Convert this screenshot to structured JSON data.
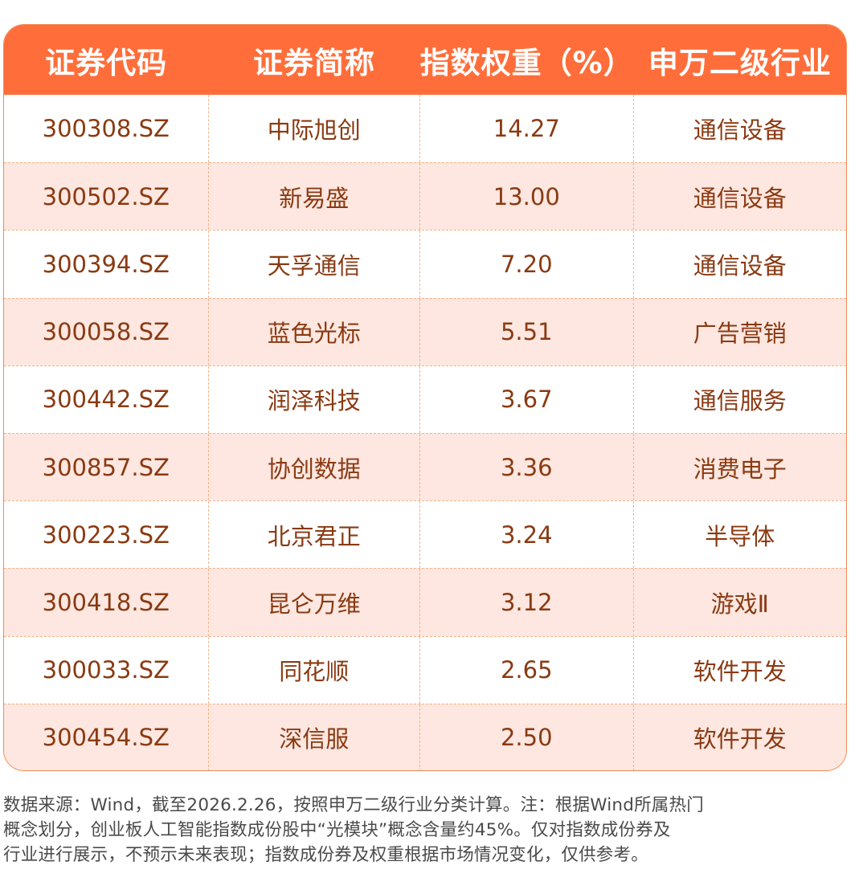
{
  "table": {
    "headers": [
      "证券代码",
      "证券简称",
      "指数权重（%）",
      "申万二级行业"
    ],
    "rows": [
      {
        "code": "300308.SZ",
        "name": "中际旭创",
        "weight": "14.27",
        "industry": "通信设备"
      },
      {
        "code": "300502.SZ",
        "name": "新易盛",
        "weight": "13.00",
        "industry": "通信设备"
      },
      {
        "code": "300394.SZ",
        "name": "天孚通信",
        "weight": "7.20",
        "industry": "通信设备"
      },
      {
        "code": "300058.SZ",
        "name": "蓝色光标",
        "weight": "5.51",
        "industry": "广告营销"
      },
      {
        "code": "300442.SZ",
        "name": "润泽科技",
        "weight": "3.67",
        "industry": "通信服务"
      },
      {
        "code": "300857.SZ",
        "name": "协创数据",
        "weight": "3.36",
        "industry": "消费电子"
      },
      {
        "code": "300223.SZ",
        "name": "北京君正",
        "weight": "3.24",
        "industry": "半导体"
      },
      {
        "code": "300418.SZ",
        "name": "昆仑万维",
        "weight": "3.12",
        "industry": "游戏Ⅱ"
      },
      {
        "code": "300033.SZ",
        "name": "同花顺",
        "weight": "2.65",
        "industry": "软件开发"
      },
      {
        "code": "300454.SZ",
        "name": "深信服",
        "weight": "2.50",
        "industry": "软件开发"
      }
    ]
  },
  "footnote": {
    "line1": "数据来源：Wind，截至2026.2.26，按照申万二级行业分类计算。注：根据Wind所属热门",
    "line2": "概念划分，创业板人工智能指数成份股中“光模块”概念含量约45%。仅对指数成份券及",
    "line3": "行业进行展示，不预示未来表现；指数成份券及权重根据市场情况变化，仅供参考。"
  },
  "colors": {
    "header_bg": "#ff6e3a",
    "header_text": "#ffffff",
    "row_alt_bg": "#fde7e0",
    "cell_text": "#8a3a12",
    "grid_line": "#f2b48a"
  }
}
